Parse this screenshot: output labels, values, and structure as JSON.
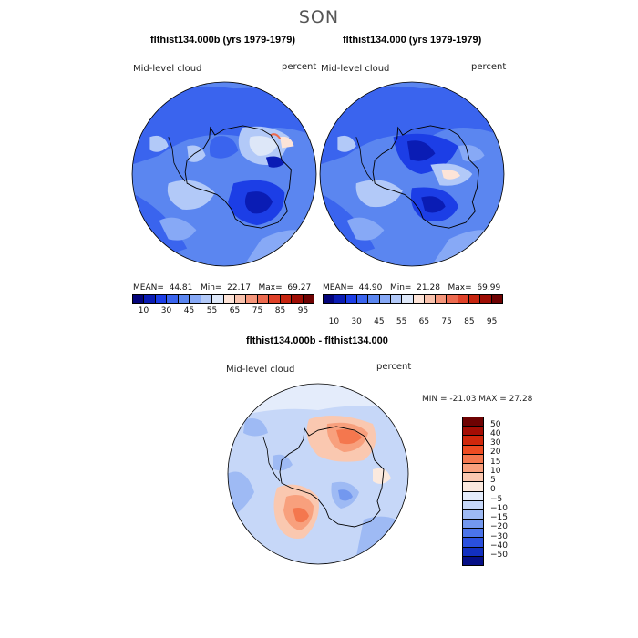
{
  "figure": {
    "season": "SON"
  },
  "panels": {
    "left": {
      "title": "flthist134.000b (yrs 1979-1979)",
      "variable": "Mid-level cloud",
      "units": "percent",
      "stats": "MEAN=  44.81   Min=  22.17   Max=  69.27"
    },
    "right": {
      "title": "flthist134.000 (yrs 1979-1979)",
      "variable": "Mid-level cloud",
      "units": "percent",
      "stats": "MEAN=  44.90   Min=  21.28   Max=  69.99"
    },
    "diff": {
      "title": "flthist134.000b - flthist134.000",
      "variable": "Mid-level cloud",
      "units": "percent",
      "minmax": "MIN = -21.03 MAX =  27.28"
    }
  },
  "colorbar_abs": {
    "colors": [
      "#04047a",
      "#0a1cb4",
      "#1c3ee6",
      "#3a64ee",
      "#5b86f0",
      "#87a9f6",
      "#b2c9f8",
      "#dde7f8",
      "#fde4d8",
      "#f8c2ad",
      "#f4957a",
      "#ec6a4f",
      "#df4128",
      "#c62510",
      "#9e0d04",
      "#6e0202"
    ],
    "ticks": [
      "10",
      "30",
      "45",
      "55",
      "65",
      "75",
      "85",
      "95"
    ]
  },
  "colorbar_diff": {
    "colors": [
      "#6e0202",
      "#a40d04",
      "#d0280c",
      "#ee4c22",
      "#f4774e",
      "#f8a07d",
      "#fac8b0",
      "#fbe9de",
      "#e4ecfb",
      "#c6d7f8",
      "#9ebaf4",
      "#7398ef",
      "#4b74ea",
      "#2a50de",
      "#1230c0",
      "#050f86"
    ],
    "ticks": [
      "50",
      "40",
      "30",
      "20",
      "15",
      "10",
      "5",
      "0",
      "−5",
      "−10",
      "−15",
      "−20",
      "−30",
      "−40",
      "−50"
    ]
  }
}
